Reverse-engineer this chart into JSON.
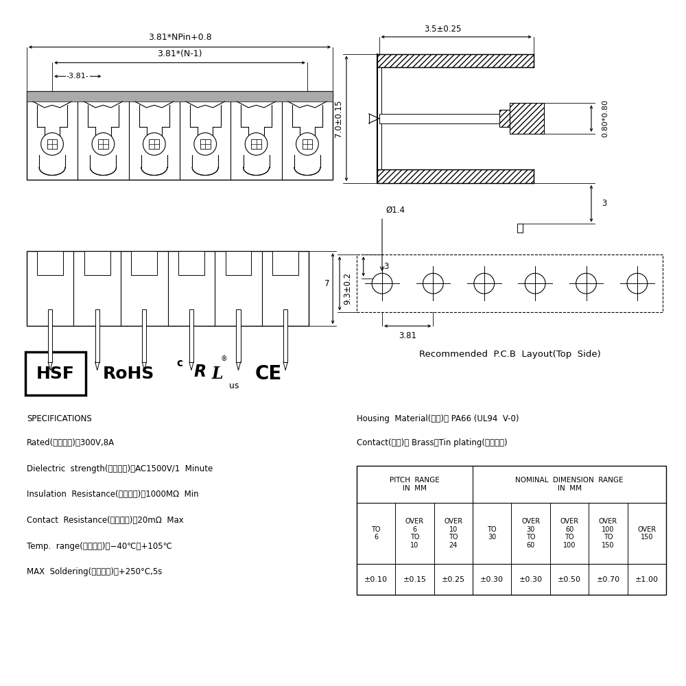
{
  "bg_color": "#ffffff",
  "line_color": "#000000",
  "specs_title": "SPECIFICATIONS",
  "specs_lines": [
    "Rated(额定参数)：300V,8A",
    "Dielectric  strength(抗电强度)：AC1500V/1  Minute",
    "Insulation  Resistance(绣缘电阻)：1000MΩ  Min",
    "Contact  Resistance(接触电阻)：20mΩ  Max",
    "Temp.  range(操作温度)：−40℃～+105℃",
    "MAX  Soldering(瞬时温度)：+250°C,5s"
  ],
  "housing_line1": "Housing  Material(塑件)： PA66 (UL94  V-0)",
  "housing_line2": "Contact(端子)： Brass，Tin plating(黄銅镀锡)",
  "dim_top_label": "3.81*NPin+0.8",
  "dim_mid_label": "3.81*(N-1)",
  "dim_small_label": "3.81",
  "dim_side_label": "7.0±0.15",
  "dim_top2_label": "3.5±0.25",
  "dim_right1_label": "0.80*0.80",
  "dim_right2_label": "3",
  "dim_bottom_label": "9.3±0.2",
  "dim_pcb_label": "3.81",
  "dim_dia_label": "Ø1.4",
  "dim_pcb_3": "3",
  "dim_pcb_7": "7",
  "pcb_caption": "Recommended  P.C.B  Layout(Top  Side)",
  "table_vals": [
    "±0.10",
    "±0.15",
    "±0.25",
    "±0.30",
    "±0.30",
    "±0.50",
    "±0.70",
    "±1.00"
  ],
  "n_pins": 6
}
